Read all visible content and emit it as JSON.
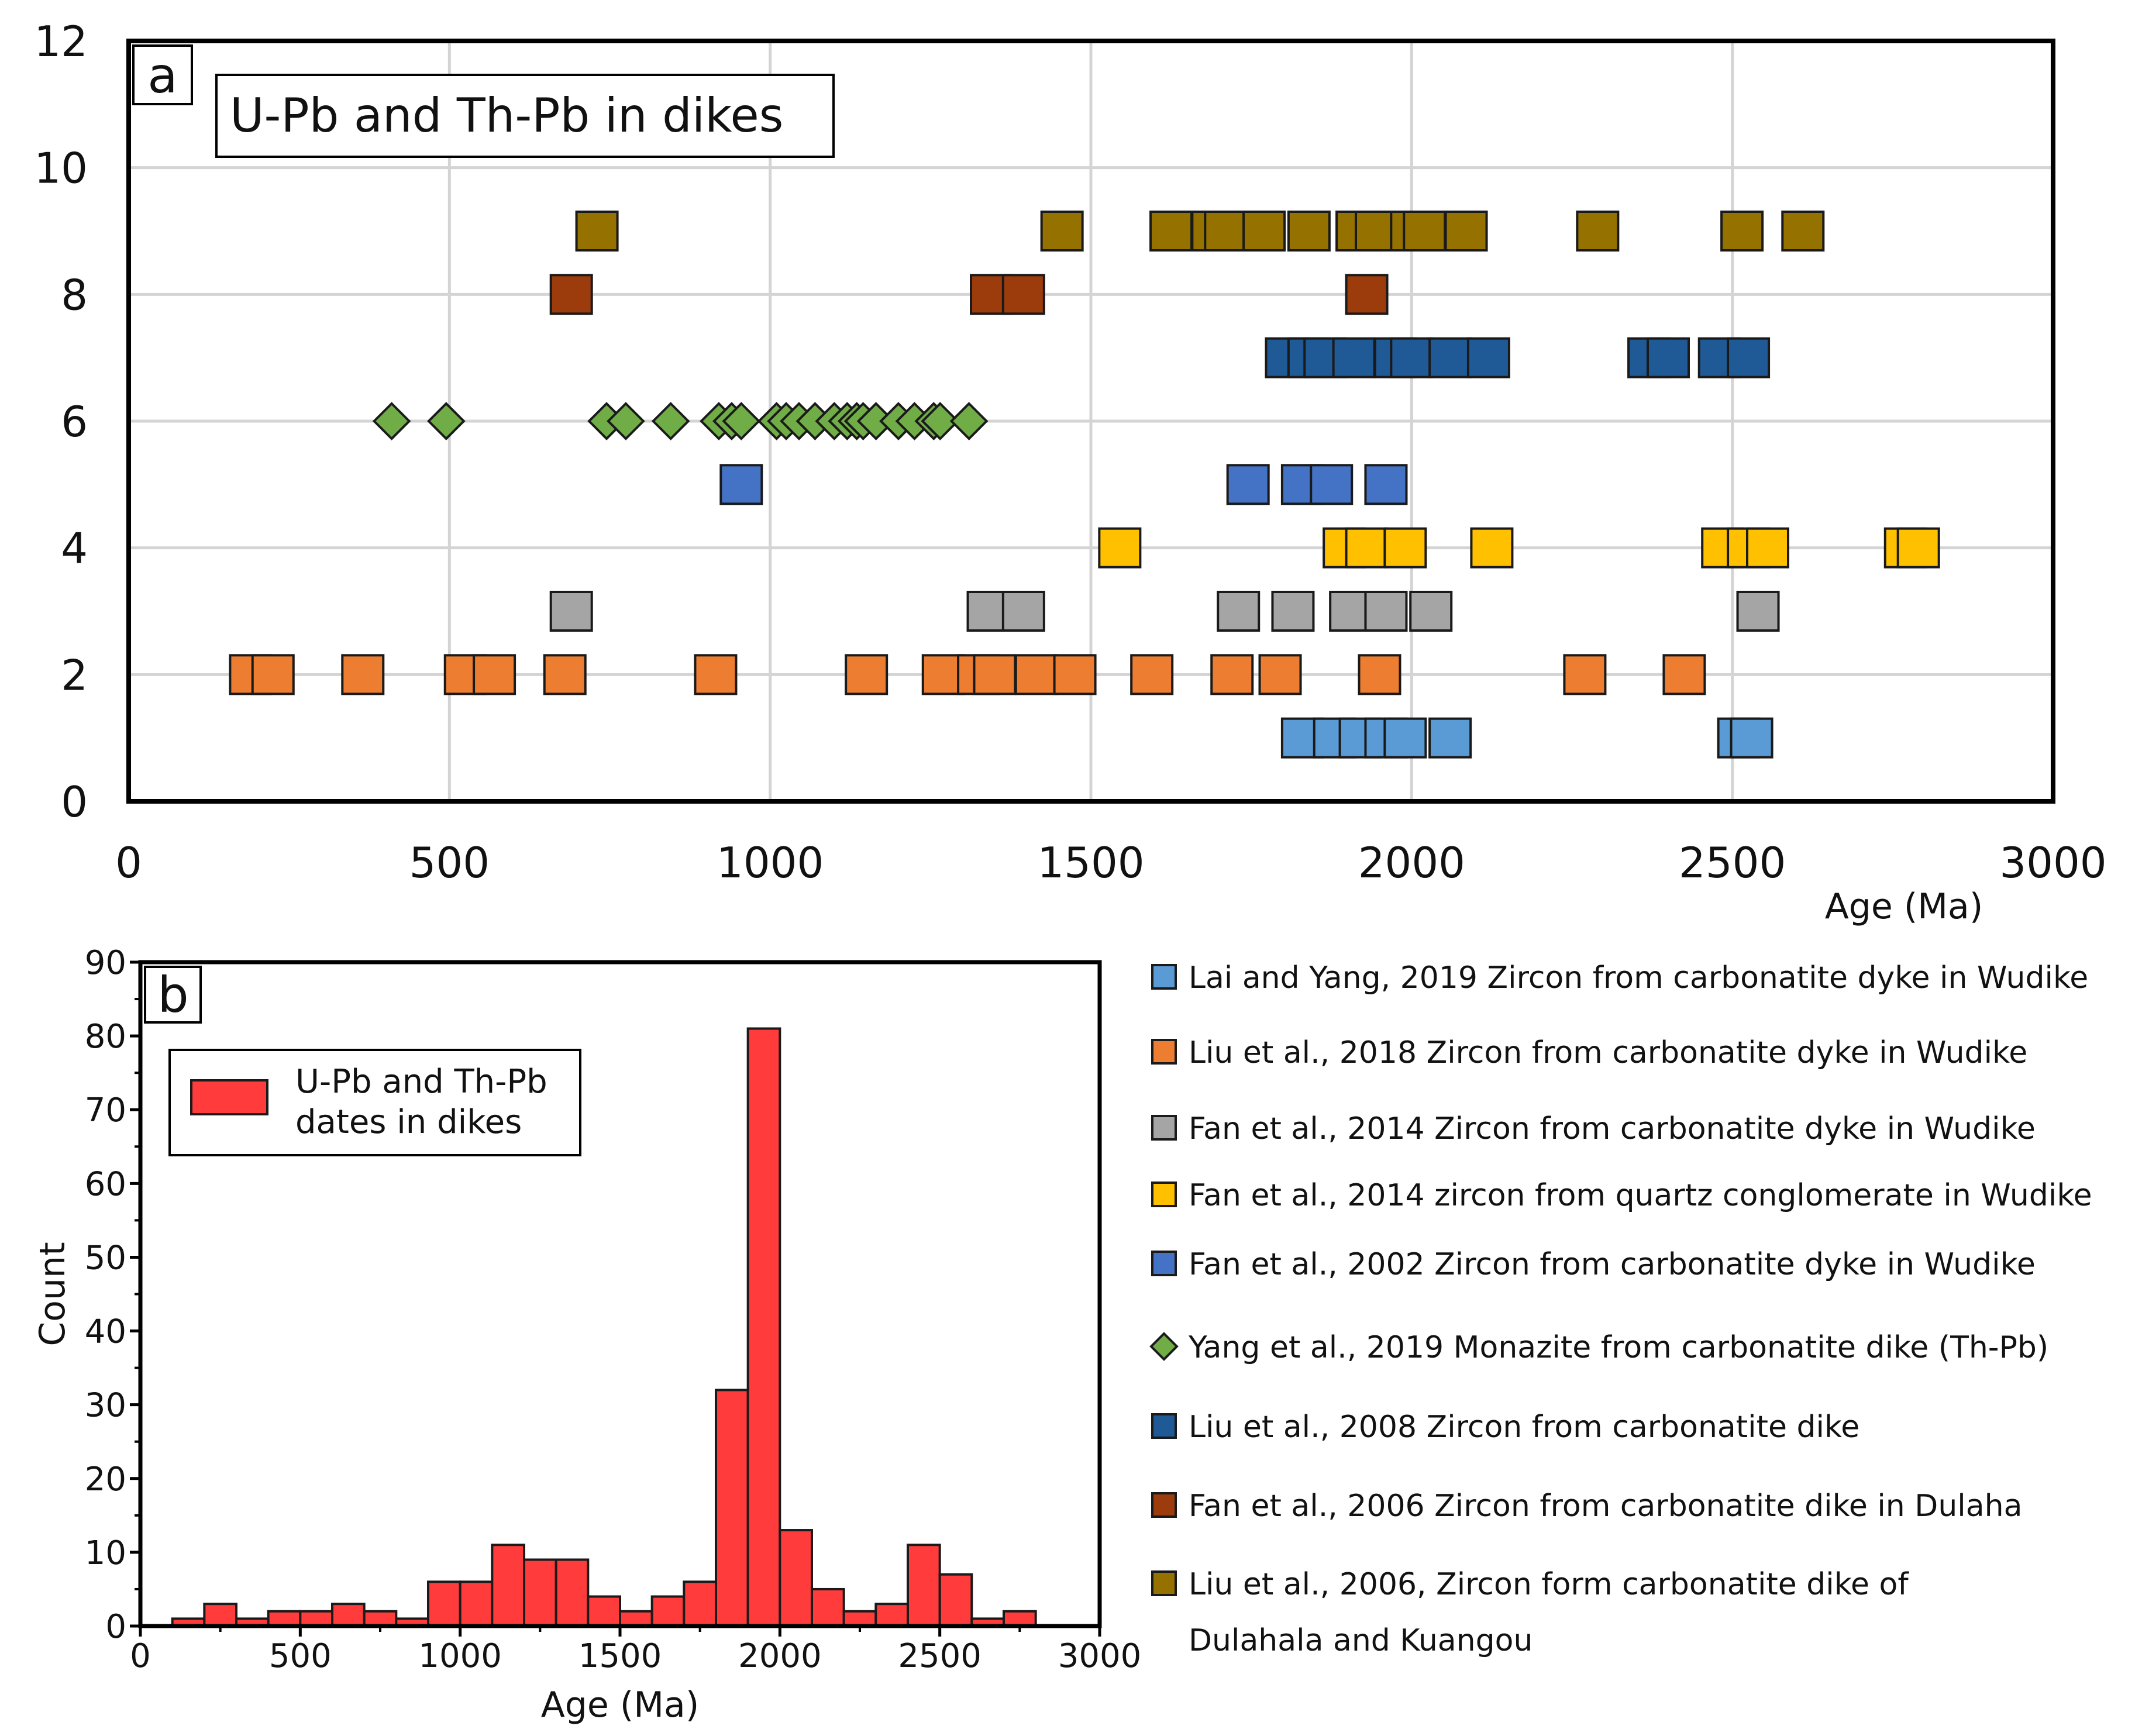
{
  "chart_data": [
    {
      "panel": "a",
      "type": "scatter",
      "title": "U-Pb and Th-Pb in dikes",
      "xlabel": "Age (Ma)",
      "ylabel": "",
      "xlim": [
        0,
        3000
      ],
      "ylim": [
        0,
        12
      ],
      "xticks": [
        0,
        500,
        1000,
        1500,
        2000,
        2500,
        3000
      ],
      "yticks": [
        0,
        2,
        4,
        6,
        8,
        10,
        12
      ],
      "grid": true,
      "series": [
        {
          "name": "Lai and Yang, 2019 Zircon from carbonatite dyke in Wudike",
          "marker": "square",
          "color": "#5b9bd5",
          "y": 1,
          "x": [
            1830,
            1880,
            1920,
            1960,
            1990,
            2060,
            2510,
            2530
          ]
        },
        {
          "name": "Liu et al., 2018 Zircon from carbonatite dyke in Wudike",
          "marker": "square",
          "color": "#ed7d31",
          "y": 2,
          "x": [
            190,
            225,
            365,
            525,
            570,
            680,
            915,
            1150,
            1270,
            1325,
            1350,
            1415,
            1475,
            1595,
            1720,
            1795,
            1950,
            2270,
            2425
          ]
        },
        {
          "name": "Fan et al., 2014 Zircon from carbonatite dyke in Wudike",
          "marker": "square",
          "color": "#a5a5a5",
          "y": 3,
          "x": [
            690,
            1340,
            1395,
            1730,
            1815,
            1905,
            1960,
            2030,
            2540
          ]
        },
        {
          "name": "Fan et al., 2014 zircon from quartz conglomerate in Wudike",
          "marker": "square",
          "color": "#ffc000",
          "y": 4,
          "x": [
            1545,
            1895,
            1930,
            1990,
            2125,
            2485,
            2525,
            2555,
            2770,
            2790
          ]
        },
        {
          "name": "Fan et al., 2002  Zircon from carbonatite dyke in Wudike",
          "marker": "square",
          "color": "#4472c4",
          "y": 5,
          "x": [
            955,
            1745,
            1830,
            1875,
            1960
          ]
        },
        {
          "name": "Yang et al., 2019  Monazite from carbonatite dike (Th-Pb)",
          "marker": "diamond",
          "color": "#70ad47",
          "y": 6,
          "x": [
            410,
            495,
            745,
            775,
            845,
            920,
            940,
            955,
            1010,
            1025,
            1045,
            1070,
            1100,
            1120,
            1135,
            1145,
            1165,
            1200,
            1225,
            1255,
            1265,
            1310
          ]
        },
        {
          "name": "Liu et al., 2008  Zircon from carbonatite dike",
          "marker": "square",
          "color": "#1f5a96",
          "y": 7,
          "x": [
            1805,
            1840,
            1865,
            1910,
            1975,
            2000,
            2060,
            2120,
            2370,
            2400,
            2480,
            2525
          ]
        },
        {
          "name": "Fan et al., 2006  Zircon from carbonatite dike in Dulaha",
          "marker": "square",
          "color": "#9c3c0c",
          "y": 8,
          "x": [
            690,
            1345,
            1395,
            1930
          ]
        },
        {
          "name": "Liu et al., 2006, Zircon form carbonatite dike of Dulahala and Kuangou",
          "marker": "square",
          "color": "#957200",
          "y": 9,
          "x": [
            730,
            1455,
            1625,
            1690,
            1710,
            1770,
            1840,
            1915,
            1945,
            2000,
            2020,
            2085,
            2290,
            2515,
            2610
          ]
        }
      ]
    },
    {
      "panel": "b",
      "type": "bar",
      "title": "",
      "xlabel": "Age (Ma)",
      "ylabel": "Count",
      "xlim": [
        0,
        3000
      ],
      "ylim": [
        0,
        90
      ],
      "xticks": [
        0,
        500,
        1000,
        1500,
        2000,
        2500,
        3000
      ],
      "yticks": [
        0,
        10,
        20,
        30,
        40,
        50,
        60,
        70,
        80,
        90
      ],
      "bin_width": 100,
      "bin_starts": [
        100,
        200,
        300,
        400,
        500,
        600,
        700,
        800,
        900,
        1000,
        1100,
        1200,
        1300,
        1400,
        1500,
        1600,
        1700,
        1800,
        1900,
        2000,
        2100,
        2200,
        2300,
        2400,
        2500,
        2600,
        2700,
        2800
      ],
      "values": [
        1,
        3,
        1,
        2,
        2,
        3,
        2,
        1,
        6,
        6,
        11,
        9,
        9,
        4,
        2,
        4,
        6,
        32,
        81,
        13,
        5,
        2,
        3,
        11,
        7,
        1,
        2,
        0
      ],
      "legend": "U-Pb and Th-Pb dates in dikes",
      "legend_lines": [
        "U-Pb and Th-Pb",
        "dates in dikes"
      ],
      "color": "#ff3b3b"
    }
  ],
  "legend": {
    "items": [
      {
        "label": "Lai and Yang, 2019 Zircon from carbonatite dyke in Wudike",
        "marker": "square",
        "color": "#5b9bd5"
      },
      {
        "label": "Liu et al., 2018 Zircon from carbonatite dyke in Wudike",
        "marker": "square",
        "color": "#ed7d31"
      },
      {
        "label": "Fan et al., 2014 Zircon from carbonatite dyke in Wudike",
        "marker": "square",
        "color": "#a5a5a5"
      },
      {
        "label": "Fan et al., 2014 zircon from quartz conglomerate in Wudike",
        "marker": "square",
        "color": "#ffc000"
      },
      {
        "label": "Fan et al., 2002  Zircon from carbonatite dyke in Wudike",
        "marker": "square",
        "color": "#4472c4"
      },
      {
        "label": "Yang et al., 2019  Monazite from carbonatite dike (Th-Pb)",
        "marker": "diamond",
        "color": "#70ad47"
      },
      {
        "label": "Liu et al., 2008  Zircon from carbonatite dike",
        "marker": "square",
        "color": "#1f5a96"
      },
      {
        "label": "Fan et al., 2006  Zircon from carbonatite dike in Dulaha",
        "marker": "square",
        "color": "#9c3c0c"
      },
      {
        "label": "Liu et al., 2006, Zircon form carbonatite dike of",
        "label2": "Dulahala and Kuangou",
        "marker": "square",
        "color": "#957200"
      }
    ]
  }
}
